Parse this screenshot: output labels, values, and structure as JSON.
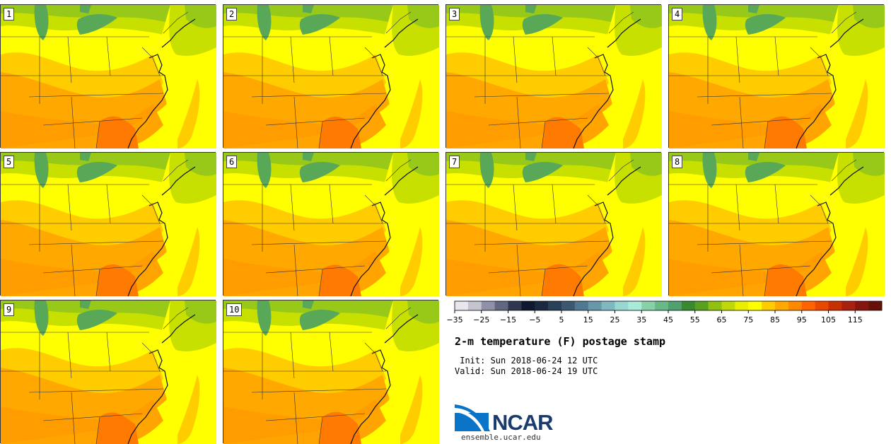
{
  "chart_data": {
    "type": "heatmap",
    "title": "2-m temperature (F) postage stamp",
    "init_label": " Init: Sun 2018-06-24 12 UTC",
    "valid_label": "Valid: Sun 2018-06-24 19 UTC",
    "variable": "2-m temperature (F)",
    "members": [
      "1",
      "2",
      "3",
      "4",
      "5",
      "6",
      "7",
      "8",
      "9",
      "10"
    ],
    "colorbar": {
      "tick_labels": [
        "-35",
        "-25",
        "-15",
        "-5",
        "5",
        "15",
        "25",
        "35",
        "45",
        "55",
        "65",
        "75",
        "85",
        "95",
        "105",
        "115"
      ],
      "colors": [
        "#e8e8ec",
        "#c4c4d0",
        "#9090a8",
        "#606880",
        "#303850",
        "#101830",
        "#1a2840",
        "#2a4058",
        "#3c5870",
        "#507890",
        "#6898a8",
        "#80b8c0",
        "#98d8d0",
        "#a8ecd8",
        "#88d0a8",
        "#68b888",
        "#50a070",
        "#3a8830",
        "#58a020",
        "#90c010",
        "#c0d808",
        "#e8f000",
        "#ffff00",
        "#ffcc00",
        "#ffa800",
        "#ff8800",
        "#ff6400",
        "#e84800",
        "#c83000",
        "#a82010",
        "#881410",
        "#681008"
      ]
    }
  },
  "branding": {
    "org": "NCAR",
    "site": "ensemble.ucar.edu"
  }
}
